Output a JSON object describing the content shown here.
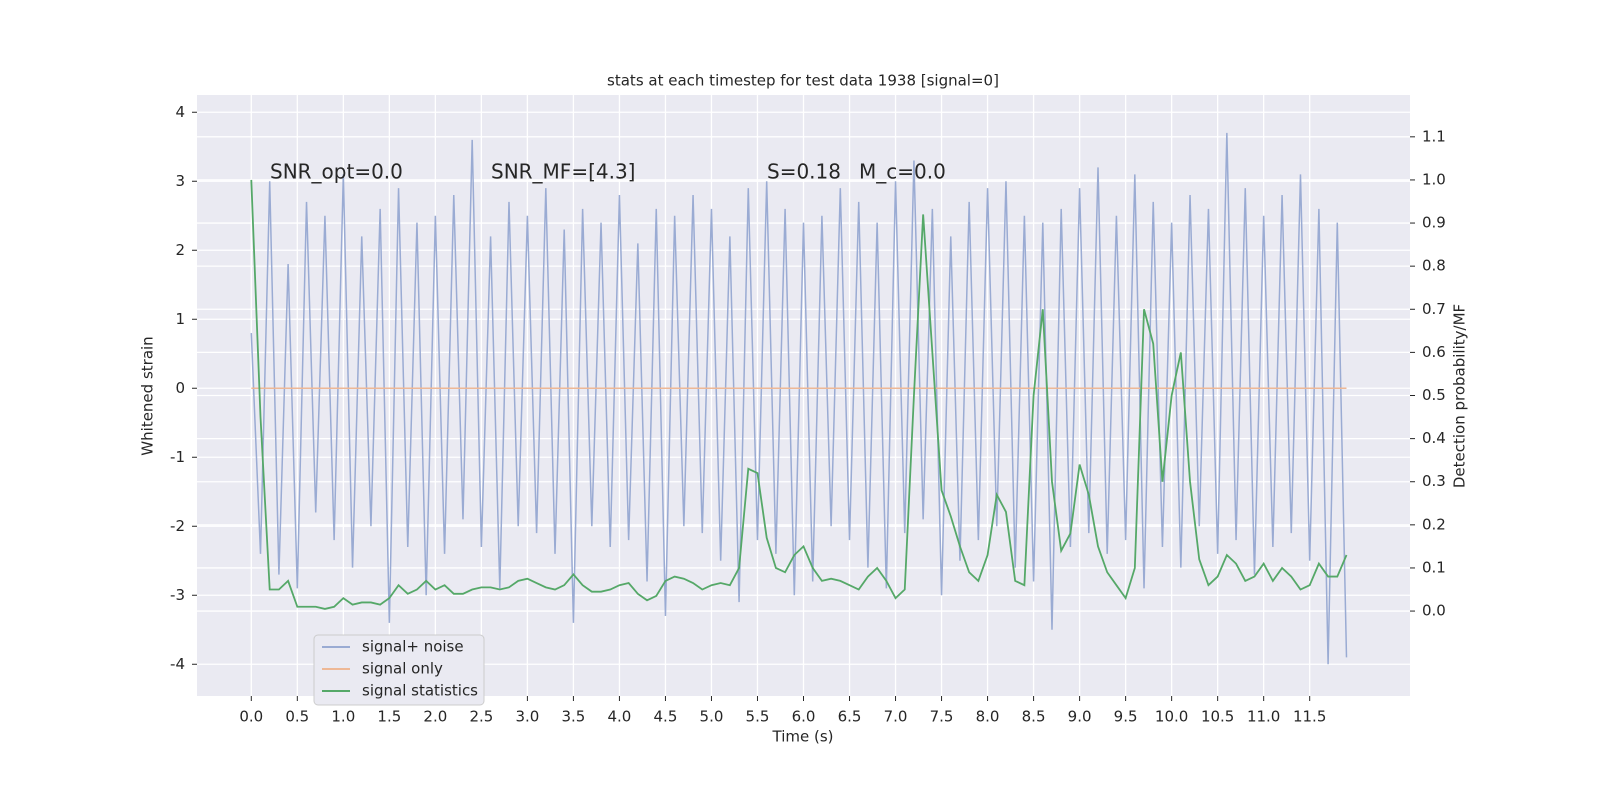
{
  "chart_data": {
    "type": "line",
    "title": "stats at each timestep for test data 1938 [signal=0]",
    "xlabel": "Time (s)",
    "ylabel": "Whitened strain",
    "y2label": "Detection probability/MF",
    "annotations": [
      "SNR_opt=0.0",
      "SNR_MF=[4.3]",
      "S=0.18",
      "M_c=0.0"
    ],
    "grid": true,
    "legend": "lower left",
    "xlim": [
      -0.59,
      12.59
    ],
    "ylim": [
      -4.46,
      4.25
    ],
    "y2lim": [
      -0.197,
      1.197
    ],
    "xticks": [
      {
        "value": 0,
        "label": "0.0"
      },
      0.5,
      {
        "value": 1,
        "label": "1.0"
      },
      1.5,
      {
        "value": 2,
        "label": "2.0"
      },
      2.5,
      {
        "value": 3,
        "label": "3.0"
      },
      3.5,
      {
        "value": 4,
        "label": "4.0"
      },
      4.5,
      {
        "value": 5,
        "label": "5.0"
      },
      5.5,
      {
        "value": 6,
        "label": "6.0"
      },
      6.5,
      {
        "value": 7,
        "label": "7.0"
      },
      7.5,
      {
        "value": 8,
        "label": "8.0"
      },
      8.5,
      {
        "value": 9,
        "label": "9.0"
      },
      9.5,
      {
        "value": 10,
        "label": "10.0"
      },
      10.5,
      {
        "value": 11,
        "label": "11.0"
      },
      11.5
    ],
    "yticks": [
      -4,
      -3,
      -2,
      -1,
      0,
      1,
      2,
      3,
      4
    ],
    "y2ticks": [
      {
        "value": 0,
        "label": "0.0"
      },
      0.1,
      0.2,
      0.3,
      0.4,
      0.5,
      0.6,
      0.7,
      0.8,
      0.9,
      {
        "value": 1,
        "label": "1.0"
      },
      1.1
    ],
    "x": [
      0,
      0.1,
      0.2,
      0.3,
      0.4,
      0.5,
      0.6,
      0.7,
      0.8,
      0.9,
      1,
      1.1,
      1.2,
      1.3,
      1.4,
      1.5,
      1.6,
      1.7,
      1.8,
      1.9,
      2,
      2.1,
      2.2,
      2.3,
      2.4,
      2.5,
      2.6,
      2.7,
      2.8,
      2.9,
      3,
      3.1,
      3.2,
      3.3,
      3.4,
      3.5,
      3.6,
      3.7,
      3.8,
      3.9,
      4,
      4.1,
      4.2,
      4.3,
      4.4,
      4.5,
      4.6,
      4.7,
      4.8,
      4.9,
      5,
      5.1,
      5.2,
      5.3,
      5.4,
      5.5,
      5.6,
      5.7,
      5.8,
      5.9,
      6,
      6.1,
      6.2,
      6.3,
      6.4,
      6.5,
      6.6,
      6.7,
      6.8,
      6.9,
      7,
      7.1,
      7.2,
      7.3,
      7.4,
      7.5,
      7.6,
      7.7,
      7.8,
      7.9,
      8,
      8.1,
      8.2,
      8.3,
      8.4,
      8.5,
      8.6,
      8.7,
      8.8,
      8.9,
      9,
      9.1,
      9.2,
      9.3,
      9.4,
      9.5,
      9.6,
      9.7,
      9.8,
      9.9,
      10,
      10.1,
      10.2,
      10.3,
      10.4,
      10.5,
      10.6,
      10.7,
      10.8,
      10.9,
      11,
      11.1,
      11.2,
      11.3,
      11.4,
      11.5,
      11.6,
      11.7,
      11.8,
      11.9
    ],
    "series": [
      {
        "name": "signal+ noise",
        "color": "#9aabd3",
        "values": [
          0.8,
          -2.4,
          3.0,
          -2.7,
          1.8,
          -2.9,
          2.7,
          -1.8,
          2.5,
          -2.2,
          3.1,
          -2.6,
          2.2,
          -2.0,
          2.6,
          -3.4,
          2.9,
          -2.3,
          2.4,
          -3.0,
          2.5,
          -2.4,
          2.8,
          -1.9,
          3.6,
          -2.3,
          2.2,
          -2.9,
          2.7,
          -2.0,
          2.5,
          -2.1,
          2.9,
          -2.4,
          2.3,
          -3.4,
          2.6,
          -2.0,
          2.4,
          -2.3,
          2.8,
          -2.2,
          2.1,
          -2.8,
          2.6,
          -3.3,
          2.5,
          -2.0,
          2.8,
          -2.1,
          2.6,
          -2.5,
          2.2,
          -3.1,
          2.9,
          -2.2,
          3.0,
          -2.4,
          2.6,
          -3.0,
          2.4,
          -2.8,
          2.5,
          -2.0,
          2.9,
          -2.2,
          2.7,
          -2.6,
          2.4,
          -2.9,
          3.0,
          -2.1,
          3.3,
          -1.9,
          2.6,
          -3.0,
          2.2,
          -2.5,
          2.7,
          -2.2,
          2.9,
          -2.0,
          3.0,
          -2.6,
          2.5,
          -2.8,
          2.4,
          -3.5,
          2.6,
          -2.3,
          2.9,
          -2.1,
          3.2,
          -2.4,
          2.5,
          -2.2,
          3.1,
          -2.9,
          2.7,
          -2.3,
          2.4,
          -2.6,
          2.8,
          -2.0,
          2.6,
          -2.4,
          3.7,
          -2.2,
          2.9,
          -2.7,
          2.5,
          -2.3,
          2.8,
          -2.1,
          3.1,
          -2.5,
          2.6,
          -4.0,
          2.4,
          -3.9
        ]
      },
      {
        "name": "signal only",
        "color": "#eeb896",
        "values": [
          0,
          0,
          0,
          0,
          0,
          0,
          0,
          0,
          0,
          0,
          0,
          0,
          0,
          0,
          0,
          0,
          0,
          0,
          0,
          0,
          0,
          0,
          0,
          0,
          0,
          0,
          0,
          0,
          0,
          0,
          0,
          0,
          0,
          0,
          0,
          0,
          0,
          0,
          0,
          0,
          0,
          0,
          0,
          0,
          0,
          0,
          0,
          0,
          0,
          0,
          0,
          0,
          0,
          0,
          0,
          0,
          0,
          0,
          0,
          0,
          0,
          0,
          0,
          0,
          0,
          0,
          0,
          0,
          0,
          0,
          0,
          0,
          0,
          0,
          0,
          0,
          0,
          0,
          0,
          0,
          0,
          0,
          0,
          0,
          0,
          0,
          0,
          0,
          0,
          0,
          0,
          0,
          0,
          0,
          0,
          0,
          0,
          0,
          0,
          0,
          0,
          0,
          0,
          0,
          0,
          0,
          0,
          0,
          0,
          0,
          0,
          0,
          0,
          0,
          0,
          0,
          0,
          0,
          0,
          0
        ]
      },
      {
        "name": "signal statistics",
        "color": "#55a868",
        "axis": "y2",
        "values": [
          1.0,
          0.45,
          0.05,
          0.05,
          0.07,
          0.01,
          0.01,
          0.01,
          0.005,
          0.01,
          0.03,
          0.015,
          0.02,
          0.02,
          0.015,
          0.03,
          0.06,
          0.04,
          0.05,
          0.07,
          0.05,
          0.06,
          0.04,
          0.04,
          0.05,
          0.055,
          0.055,
          0.05,
          0.055,
          0.07,
          0.075,
          0.065,
          0.055,
          0.05,
          0.06,
          0.085,
          0.06,
          0.045,
          0.045,
          0.05,
          0.06,
          0.065,
          0.04,
          0.025,
          0.035,
          0.07,
          0.08,
          0.075,
          0.065,
          0.05,
          0.06,
          0.065,
          0.06,
          0.1,
          0.33,
          0.32,
          0.17,
          0.1,
          0.09,
          0.13,
          0.15,
          0.1,
          0.07,
          0.075,
          0.07,
          0.06,
          0.05,
          0.08,
          0.1,
          0.07,
          0.03,
          0.05,
          0.5,
          0.92,
          0.6,
          0.28,
          0.22,
          0.15,
          0.09,
          0.07,
          0.13,
          0.27,
          0.23,
          0.07,
          0.06,
          0.5,
          0.7,
          0.3,
          0.14,
          0.18,
          0.34,
          0.27,
          0.15,
          0.09,
          0.06,
          0.03,
          0.1,
          0.7,
          0.62,
          0.3,
          0.5,
          0.6,
          0.3,
          0.12,
          0.06,
          0.08,
          0.13,
          0.11,
          0.07,
          0.08,
          0.11,
          0.07,
          0.1,
          0.08,
          0.05,
          0.06,
          0.11,
          0.08,
          0.08,
          0.13
        ]
      }
    ]
  }
}
